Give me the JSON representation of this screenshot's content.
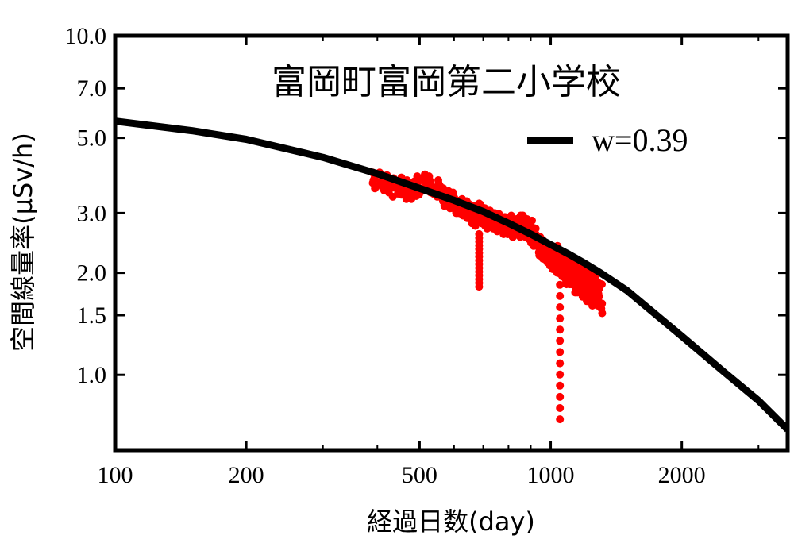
{
  "chart_data": {
    "type": "line",
    "title": "富岡町富岡第二小学校",
    "xlabel": "経過日数(day)",
    "ylabel": "空間線量率(μSv/h)",
    "x_scale": "log",
    "y_scale": "log",
    "xlim": [
      100,
      3500
    ],
    "ylim": [
      0.6,
      10.0
    ],
    "x_ticks": [
      100,
      200,
      500,
      1000,
      2000
    ],
    "x_tick_labels": [
      "100",
      "200",
      "500",
      "1000",
      "2000"
    ],
    "y_ticks": [
      1.0,
      1.5,
      2.0,
      3.0,
      5.0,
      7.0,
      10.0
    ],
    "y_tick_labels": [
      "1.0",
      "1.5",
      "2.0",
      "3.0",
      "5.0",
      "7.0",
      "10.0"
    ],
    "grid": false,
    "legend_position": "top-right",
    "fit_line": {
      "name": "w=0.39",
      "color": "#000000",
      "x": [
        100,
        150,
        200,
        300,
        400,
        500,
        600,
        700,
        800,
        900,
        1000,
        1100,
        1200,
        1300,
        1500,
        2000,
        2500,
        3000,
        3500
      ],
      "y": [
        5.6,
        5.25,
        4.95,
        4.38,
        3.92,
        3.55,
        3.27,
        3.03,
        2.8,
        2.6,
        2.42,
        2.27,
        2.13,
        2.0,
        1.77,
        1.3,
        1.02,
        0.84,
        0.69
      ]
    },
    "measured_series": {
      "color": "#ff0000",
      "x": [
        395,
        410,
        425,
        440,
        455,
        470,
        485,
        500,
        515,
        530,
        545,
        560,
        575,
        590,
        605,
        620,
        635,
        650,
        665,
        680,
        695,
        710,
        725,
        740,
        755,
        770,
        785,
        800,
        815,
        830,
        845,
        860,
        875,
        890,
        905,
        920,
        935,
        950,
        965,
        980,
        995,
        1010,
        1025,
        1040,
        1055,
        1070,
        1085,
        1100,
        1115,
        1130,
        1145,
        1160,
        1175,
        1190,
        1205,
        1220,
        1235,
        1250,
        1265,
        1280,
        1295
      ],
      "y_high": [
        3.95,
        3.95,
        3.88,
        3.8,
        3.82,
        3.75,
        3.72,
        3.85,
        3.9,
        3.85,
        3.75,
        3.6,
        3.55,
        3.45,
        3.4,
        3.3,
        3.25,
        3.2,
        3.15,
        3.2,
        3.18,
        3.1,
        3.05,
        3.0,
        2.98,
        2.95,
        2.92,
        2.95,
        2.9,
        2.88,
        2.95,
        2.92,
        2.95,
        2.88,
        2.85,
        2.7,
        2.6,
        2.55,
        2.5,
        2.45,
        2.4,
        2.38,
        2.4,
        2.3,
        2.28,
        2.25,
        2.22,
        2.15,
        2.15,
        2.12,
        2.1,
        2.1,
        2.08,
        2.05,
        2.05,
        2.0,
        2.0,
        2.0,
        1.95,
        1.92,
        1.85
      ],
      "y_low": [
        3.55,
        3.5,
        3.45,
        3.35,
        3.4,
        3.3,
        3.3,
        3.4,
        3.5,
        3.45,
        3.35,
        3.25,
        3.15,
        3.1,
        3.0,
        3.0,
        2.95,
        2.9,
        2.8,
        2.75,
        2.8,
        2.75,
        2.7,
        2.7,
        2.65,
        2.6,
        2.6,
        2.6,
        2.55,
        2.55,
        2.6,
        2.55,
        2.55,
        2.5,
        2.45,
        2.4,
        2.3,
        2.25,
        2.2,
        2.15,
        2.1,
        2.05,
        2.05,
        2.0,
        1.95,
        1.95,
        1.9,
        1.85,
        1.85,
        1.8,
        1.75,
        1.75,
        1.75,
        1.7,
        1.7,
        1.65,
        1.65,
        1.65,
        1.6,
        1.6,
        1.52
      ],
      "dips": [
        {
          "x": 685,
          "y_min": 1.82
        },
        {
          "x": 1050,
          "y_min": 0.74
        }
      ]
    }
  }
}
